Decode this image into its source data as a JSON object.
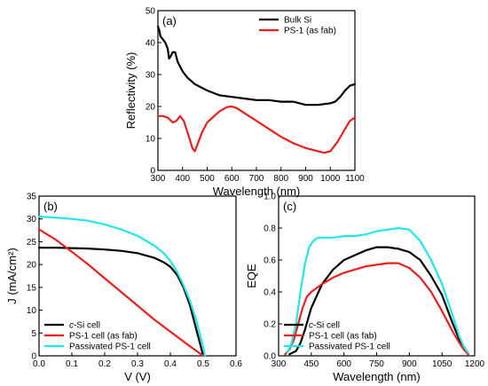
{
  "chart_data": [
    {
      "type": "line",
      "panel_label": "(a)",
      "xlabel": "Wavelength (nm)",
      "ylabel": "Reflectivity (%)",
      "xlim": [
        300,
        1100
      ],
      "ylim": [
        0,
        50
      ],
      "xticks": [
        300,
        400,
        500,
        600,
        700,
        800,
        900,
        1000,
        1100
      ],
      "yticks": [
        0,
        10,
        20,
        30,
        40,
        50
      ],
      "grid": false,
      "legend_position": "top-right",
      "series": [
        {
          "name": "Bulk Si",
          "color": "#000000",
          "x": [
            300,
            305,
            310,
            320,
            330,
            340,
            345,
            350,
            360,
            370,
            380,
            400,
            420,
            450,
            500,
            550,
            600,
            650,
            700,
            750,
            800,
            850,
            900,
            950,
            1000,
            1020,
            1040,
            1060,
            1080,
            1100
          ],
          "y": [
            45,
            44,
            42,
            41,
            40,
            38,
            35,
            35.5,
            37,
            37,
            34,
            31,
            29,
            27,
            25,
            23.5,
            23,
            22.5,
            22,
            22,
            21.5,
            21.5,
            20.5,
            20.5,
            21,
            21.5,
            23,
            25,
            26.5,
            27
          ]
        },
        {
          "name": "PS-1 (as fab)",
          "color": "#e8201b",
          "x": [
            300,
            320,
            340,
            360,
            375,
            390,
            405,
            420,
            440,
            450,
            460,
            480,
            500,
            550,
            580,
            600,
            620,
            650,
            700,
            750,
            800,
            850,
            900,
            950,
            975,
            1000,
            1030,
            1060,
            1080,
            1100
          ],
          "y": [
            17,
            17,
            16.5,
            15,
            15.5,
            17,
            15.5,
            12,
            7,
            6,
            8,
            12,
            15,
            18.5,
            19.8,
            20,
            19.5,
            18,
            15.5,
            13,
            10.5,
            8.5,
            7,
            6,
            5.5,
            6,
            9,
            13,
            15.5,
            16.5
          ]
        }
      ]
    },
    {
      "type": "line",
      "panel_label": "(b)",
      "xlabel": "V (V)",
      "ylabel": "J (mA/cm²)",
      "xlim": [
        0,
        0.6
      ],
      "ylim": [
        0,
        35
      ],
      "xticks": [
        "0.0",
        "0.1",
        "0.2",
        "0.3",
        "0.4",
        "0.5",
        "0.6"
      ],
      "yticks": [
        0,
        5,
        10,
        15,
        20,
        25,
        30,
        35
      ],
      "grid": false,
      "legend_position": "bottom-left",
      "series": [
        {
          "name": "c-Si cell",
          "color": "#000000",
          "x": [
            0,
            0.05,
            0.1,
            0.15,
            0.2,
            0.25,
            0.3,
            0.35,
            0.38,
            0.4,
            0.42,
            0.44,
            0.46,
            0.48,
            0.49,
            0.5
          ],
          "y": [
            23.7,
            23.7,
            23.6,
            23.5,
            23.3,
            23,
            22.5,
            21.5,
            20.5,
            19.5,
            17.8,
            15,
            11,
            5.5,
            2.8,
            0
          ]
        },
        {
          "name": "PS-1 cell (as fab)",
          "color": "#e8201b",
          "x": [
            0,
            0.05,
            0.1,
            0.15,
            0.2,
            0.25,
            0.3,
            0.35,
            0.4,
            0.45,
            0.5
          ],
          "y": [
            27.7,
            25.5,
            22.8,
            20,
            17,
            14,
            11,
            8,
            5.3,
            2.6,
            0
          ]
        },
        {
          "name": "Passivated PS-1 cell",
          "color": "#22e6e6",
          "x": [
            0,
            0.05,
            0.1,
            0.15,
            0.2,
            0.25,
            0.3,
            0.35,
            0.38,
            0.4,
            0.42,
            0.44,
            0.46,
            0.48,
            0.5,
            0.505
          ],
          "y": [
            30.5,
            30.3,
            30,
            29.6,
            28.8,
            27.7,
            26.3,
            24.2,
            22.5,
            20.8,
            18.5,
            15.5,
            12,
            7.5,
            2,
            0
          ]
        }
      ]
    },
    {
      "type": "line",
      "panel_label": "(c)",
      "xlabel": "Wavelength (nm)",
      "ylabel": "EQE",
      "xlim": [
        300,
        1200
      ],
      "ylim": [
        0,
        1.0
      ],
      "xticks": [
        300,
        450,
        600,
        750,
        900,
        1050,
        1200
      ],
      "yticks": [
        "0.0",
        "0.2",
        "0.4",
        "0.6",
        "0.8",
        "1.0"
      ],
      "grid": false,
      "legend_position": "bottom-left",
      "series": [
        {
          "name": "c-Si cell",
          "color": "#000000",
          "x": [
            350,
            380,
            400,
            420,
            450,
            500,
            550,
            600,
            650,
            700,
            750,
            800,
            850,
            900,
            950,
            1000,
            1050,
            1100,
            1130,
            1150,
            1170
          ],
          "y": [
            0.01,
            0.03,
            0.08,
            0.16,
            0.3,
            0.45,
            0.54,
            0.6,
            0.63,
            0.66,
            0.68,
            0.68,
            0.67,
            0.65,
            0.6,
            0.5,
            0.38,
            0.2,
            0.1,
            0.05,
            0.01
          ]
        },
        {
          "name": "PS-1 cell (as fab)",
          "color": "#e8201b",
          "x": [
            330,
            350,
            370,
            390,
            410,
            430,
            450,
            480,
            500,
            550,
            600,
            650,
            700,
            750,
            800,
            850,
            900,
            950,
            1000,
            1050,
            1100,
            1130,
            1150,
            1170
          ],
          "y": [
            0.01,
            0.04,
            0.1,
            0.2,
            0.3,
            0.37,
            0.4,
            0.43,
            0.45,
            0.49,
            0.52,
            0.54,
            0.56,
            0.57,
            0.58,
            0.58,
            0.55,
            0.49,
            0.4,
            0.28,
            0.15,
            0.08,
            0.04,
            0.01
          ]
        },
        {
          "name": "Passivated PS-1 cell",
          "color": "#22e6e6",
          "x": [
            340,
            360,
            380,
            400,
            420,
            440,
            460,
            480,
            500,
            520,
            550,
            600,
            650,
            700,
            750,
            800,
            850,
            900,
            950,
            1000,
            1050,
            1100,
            1130,
            1150,
            1170
          ],
          "y": [
            0.02,
            0.08,
            0.2,
            0.4,
            0.57,
            0.68,
            0.72,
            0.74,
            0.74,
            0.74,
            0.74,
            0.75,
            0.75,
            0.76,
            0.78,
            0.79,
            0.8,
            0.79,
            0.72,
            0.6,
            0.45,
            0.25,
            0.12,
            0.06,
            0.02
          ]
        }
      ]
    }
  ]
}
